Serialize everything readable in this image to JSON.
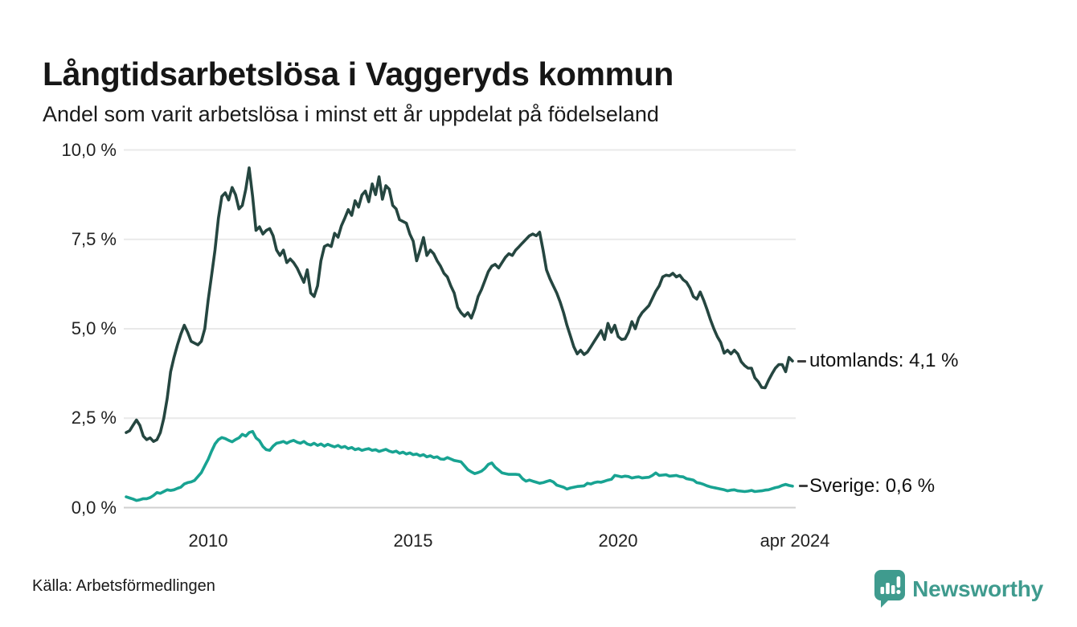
{
  "header": {
    "title": "Långtidsarbetslösa i Vaggeryds kommun",
    "subtitle": "Andel som varit arbetslösa i minst ett år uppdelat på födelseland"
  },
  "chart": {
    "y_ticks": [
      "10,0 %",
      "7,5 %",
      "5,0 %",
      "2,5 %",
      "0,0 %"
    ],
    "x_ticks": [
      "2010",
      "2015",
      "2020",
      "apr 2024"
    ],
    "end_labels": {
      "utomlands": "utomlands: 4,1 %",
      "sverige": "Sverige: 0,6 %"
    }
  },
  "footer": {
    "source": "Källa: Arbetsförmedlingen",
    "brand": "Newsworthy"
  },
  "colors": {
    "utomlands_line": "#254640",
    "sverige_line": "#18a392",
    "brand_teal": "#3f9b8e",
    "gridline": "#e9e9e9",
    "zero_line": "#cfcfcf",
    "text": "#161616"
  },
  "chart_data": {
    "type": "line",
    "title": "Långtidsarbetslösa i Vaggeryds kommun",
    "subtitle": "Andel som varit arbetslösa i minst ett år uppdelat på födelseland",
    "source": "Källa: Arbetsförmedlingen",
    "x_unit": "month",
    "x_start": "2008-01",
    "x_end": "2024-04",
    "x_tick_labels": [
      "2010",
      "2015",
      "2020",
      "apr 2024"
    ],
    "ylim": [
      0,
      10
    ],
    "yticks": [
      0,
      2.5,
      5,
      7.5,
      10
    ],
    "y_format": "percent_sv",
    "grid": "horizontal",
    "legend_position": "right-end-labels",
    "series": [
      {
        "name": "utomlands",
        "end_label": "utomlands: 4,1 %",
        "latest_value": 4.1,
        "color": "#254640",
        "values": [
          2.1,
          2.15,
          2.3,
          2.45,
          2.3,
          2.0,
          1.9,
          1.95,
          1.85,
          1.9,
          2.1,
          2.5,
          3.05,
          3.8,
          4.2,
          4.55,
          4.85,
          5.1,
          4.9,
          4.65,
          4.6,
          4.55,
          4.65,
          5.0,
          5.8,
          6.5,
          7.2,
          8.1,
          8.7,
          8.8,
          8.6,
          8.95,
          8.75,
          8.35,
          8.45,
          8.9,
          9.5,
          8.7,
          7.75,
          7.85,
          7.65,
          7.75,
          7.8,
          7.6,
          7.2,
          7.05,
          7.2,
          6.85,
          6.95,
          6.85,
          6.7,
          6.5,
          6.3,
          6.65,
          6.0,
          5.9,
          6.2,
          6.9,
          7.3,
          7.35,
          7.3,
          7.67,
          7.56,
          7.88,
          8.1,
          8.33,
          8.17,
          8.58,
          8.4,
          8.74,
          8.85,
          8.55,
          9.05,
          8.75,
          9.25,
          8.62,
          9.0,
          8.9,
          8.45,
          8.35,
          8.05,
          8.0,
          7.95,
          7.65,
          7.45,
          6.9,
          7.2,
          7.55,
          7.05,
          7.2,
          7.1,
          6.9,
          6.75,
          6.55,
          6.45,
          6.2,
          6.0,
          5.6,
          5.45,
          5.35,
          5.45,
          5.3,
          5.55,
          5.9,
          6.1,
          6.35,
          6.6,
          6.75,
          6.8,
          6.7,
          6.85,
          7.0,
          7.1,
          7.05,
          7.2,
          7.3,
          7.4,
          7.5,
          7.6,
          7.65,
          7.6,
          7.7,
          7.2,
          6.65,
          6.4,
          6.2,
          6.0,
          5.75,
          5.45,
          5.1,
          4.8,
          4.5,
          4.3,
          4.4,
          4.28,
          4.35,
          4.5,
          4.65,
          4.8,
          4.95,
          4.7,
          5.15,
          4.9,
          5.1,
          4.78,
          4.7,
          4.72,
          4.9,
          5.2,
          5.0,
          5.3,
          5.45,
          5.55,
          5.65,
          5.85,
          6.05,
          6.2,
          6.45,
          6.5,
          6.48,
          6.55,
          6.45,
          6.5,
          6.37,
          6.3,
          6.14,
          5.9,
          5.83,
          6.03,
          5.8,
          5.54,
          5.25,
          5.0,
          4.78,
          4.62,
          4.32,
          4.4,
          4.3,
          4.4,
          4.3,
          4.08,
          3.97,
          3.9,
          3.9,
          3.63,
          3.52,
          3.36,
          3.35,
          3.56,
          3.74,
          3.9,
          4.0,
          4.0,
          3.8,
          4.2,
          4.1
        ]
      },
      {
        "name": "Sverige",
        "end_label": "Sverige: 0,6 %",
        "latest_value": 0.6,
        "color": "#18a392",
        "values": [
          0.3,
          0.27,
          0.24,
          0.2,
          0.22,
          0.25,
          0.25,
          0.28,
          0.34,
          0.42,
          0.4,
          0.45,
          0.5,
          0.48,
          0.5,
          0.54,
          0.57,
          0.66,
          0.7,
          0.72,
          0.76,
          0.87,
          0.98,
          1.17,
          1.35,
          1.58,
          1.78,
          1.9,
          1.96,
          1.93,
          1.88,
          1.84,
          1.9,
          1.95,
          2.05,
          2.0,
          2.1,
          2.13,
          1.95,
          1.87,
          1.71,
          1.62,
          1.6,
          1.72,
          1.8,
          1.82,
          1.85,
          1.8,
          1.85,
          1.88,
          1.83,
          1.8,
          1.85,
          1.78,
          1.75,
          1.8,
          1.74,
          1.78,
          1.72,
          1.77,
          1.73,
          1.7,
          1.74,
          1.68,
          1.71,
          1.65,
          1.68,
          1.62,
          1.65,
          1.6,
          1.63,
          1.65,
          1.6,
          1.62,
          1.57,
          1.6,
          1.63,
          1.58,
          1.55,
          1.58,
          1.52,
          1.55,
          1.5,
          1.53,
          1.48,
          1.5,
          1.45,
          1.48,
          1.42,
          1.45,
          1.4,
          1.42,
          1.36,
          1.35,
          1.4,
          1.36,
          1.32,
          1.3,
          1.28,
          1.17,
          1.06,
          1.0,
          0.95,
          0.98,
          1.02,
          1.1,
          1.21,
          1.25,
          1.13,
          1.05,
          0.97,
          0.95,
          0.93,
          0.93,
          0.93,
          0.92,
          0.81,
          0.74,
          0.77,
          0.74,
          0.71,
          0.68,
          0.7,
          0.73,
          0.76,
          0.72,
          0.63,
          0.6,
          0.57,
          0.52,
          0.55,
          0.57,
          0.59,
          0.6,
          0.61,
          0.68,
          0.66,
          0.7,
          0.72,
          0.71,
          0.74,
          0.77,
          0.79,
          0.9,
          0.88,
          0.86,
          0.88,
          0.87,
          0.83,
          0.85,
          0.86,
          0.83,
          0.84,
          0.85,
          0.9,
          0.97,
          0.9,
          0.91,
          0.92,
          0.88,
          0.89,
          0.9,
          0.87,
          0.86,
          0.81,
          0.79,
          0.77,
          0.7,
          0.68,
          0.65,
          0.61,
          0.58,
          0.56,
          0.54,
          0.52,
          0.5,
          0.47,
          0.49,
          0.5,
          0.47,
          0.46,
          0.45,
          0.46,
          0.48,
          0.45,
          0.46,
          0.47,
          0.49,
          0.5,
          0.53,
          0.56,
          0.58,
          0.62,
          0.65,
          0.62,
          0.6
        ]
      }
    ]
  }
}
